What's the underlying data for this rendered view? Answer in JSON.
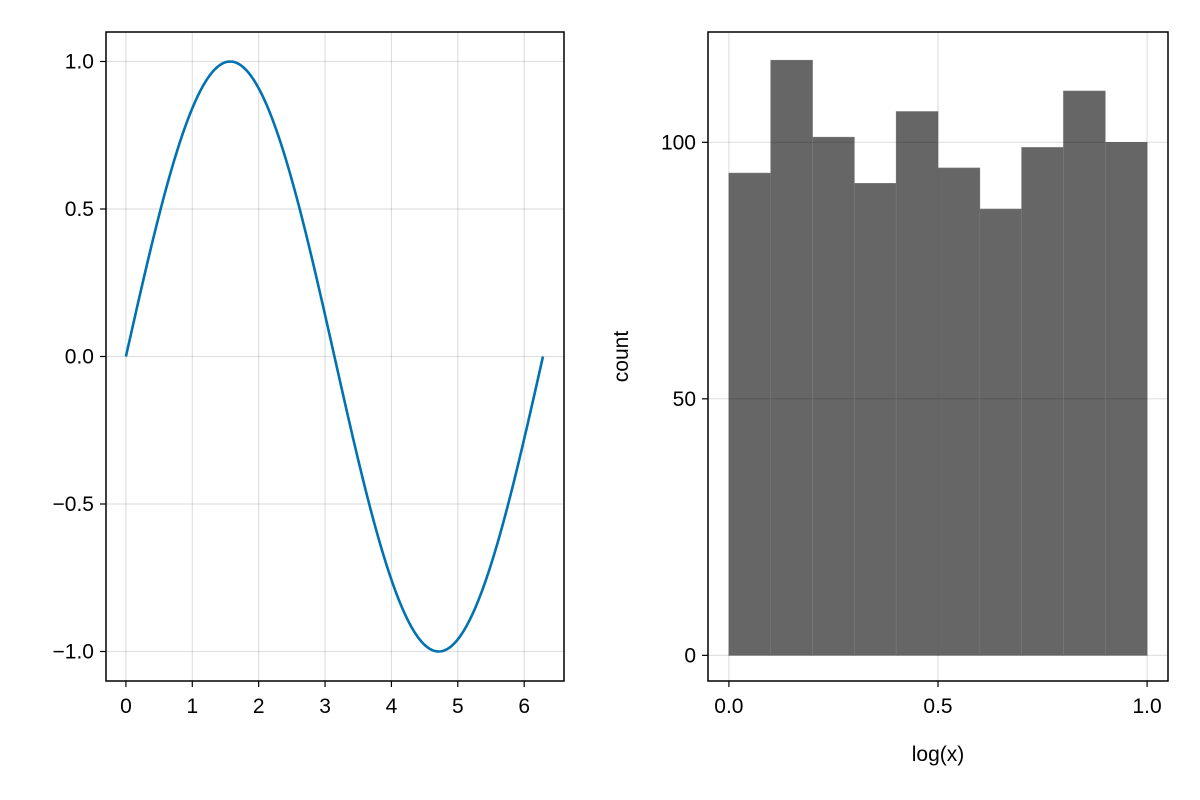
{
  "chart_data": [
    {
      "type": "line",
      "function": "sin(x)",
      "x": [
        0,
        0.157,
        0.314,
        0.471,
        0.628,
        0.785,
        0.942,
        1.1,
        1.257,
        1.414,
        1.571,
        1.728,
        1.885,
        2.042,
        2.199,
        2.356,
        2.513,
        2.67,
        2.827,
        2.985,
        3.142,
        3.299,
        3.456,
        3.613,
        3.77,
        3.927,
        4.084,
        4.241,
        4.398,
        4.555,
        4.712,
        4.869,
        5.027,
        5.184,
        5.341,
        5.498,
        5.655,
        5.812,
        5.969,
        6.126,
        6.283
      ],
      "y": [
        0,
        0.156,
        0.309,
        0.454,
        0.588,
        0.707,
        0.809,
        0.891,
        0.951,
        0.988,
        1,
        0.988,
        0.951,
        0.891,
        0.809,
        0.707,
        0.588,
        0.454,
        0.309,
        0.156,
        0,
        -0.156,
        -0.309,
        -0.454,
        -0.588,
        -0.707,
        -0.809,
        -0.891,
        -0.951,
        -0.988,
        -1,
        -0.988,
        -0.951,
        -0.891,
        -0.809,
        -0.707,
        -0.588,
        -0.454,
        -0.309,
        -0.156,
        0
      ],
      "xlim": [
        -0.3,
        6.6
      ],
      "ylim": [
        -1.1,
        1.1
      ],
      "xticks": [
        0,
        1,
        2,
        3,
        4,
        5,
        6
      ],
      "xtick_labels": [
        "0",
        "1",
        "2",
        "3",
        "4",
        "5",
        "6"
      ],
      "yticks": [
        -1,
        -0.5,
        0,
        0.5,
        1
      ],
      "ytick_labels": [
        "−1.0",
        "−0.5",
        "0.0",
        "0.5",
        "1.0"
      ],
      "xlabel": "",
      "ylabel": "",
      "grid": true,
      "line_color": "#0072b2"
    },
    {
      "type": "bar",
      "kind": "histogram",
      "bin_edges": [
        0,
        0.1,
        0.2,
        0.3,
        0.4,
        0.5,
        0.6,
        0.7,
        0.8,
        0.9,
        1.0
      ],
      "values": [
        94,
        116,
        101,
        92,
        106,
        95,
        87,
        99,
        110,
        100
      ],
      "xlim": [
        -0.05,
        1.05
      ],
      "ylim": [
        -5,
        121.5
      ],
      "xticks": [
        0,
        0.5,
        1.0
      ],
      "xtick_labels": [
        "0.0",
        "0.5",
        "1.0"
      ],
      "yticks": [
        0,
        50,
        100
      ],
      "ytick_labels": [
        "0",
        "50",
        "100"
      ],
      "xlabel": "log(x)",
      "ylabel": "count",
      "grid": true,
      "bar_color": "#666666"
    }
  ]
}
